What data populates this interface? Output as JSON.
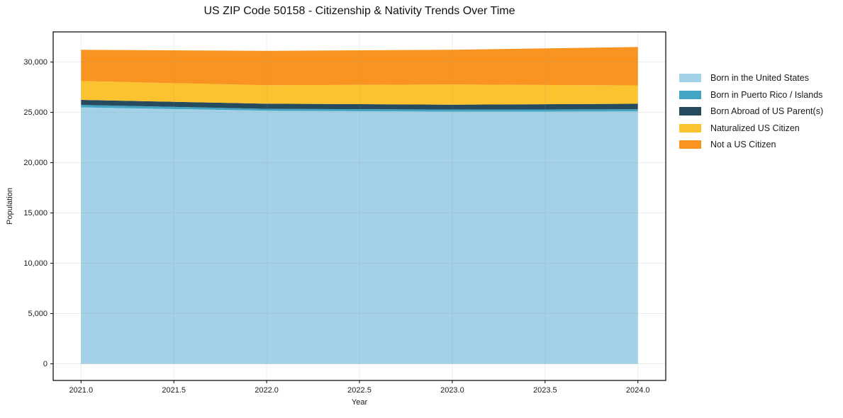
{
  "chart_data": {
    "type": "area",
    "stacked": true,
    "title": "US ZIP Code 50158 - Citizenship & Nativity Trends Over Time",
    "xlabel": "Year",
    "ylabel": "Population",
    "x": [
      2021,
      2022,
      2023,
      2024
    ],
    "series": [
      {
        "name": "Born in the United States",
        "color": "#a2d1e8",
        "values": [
          25500,
          25160,
          25070,
          25090
        ]
      },
      {
        "name": "Born in Puerto Rico / Islands",
        "color": "#41a5c3",
        "values": [
          240,
          190,
          210,
          210
        ]
      },
      {
        "name": "Born Abroad of US Parent(s)",
        "color": "#264a5e",
        "values": [
          500,
          510,
          490,
          560
        ]
      },
      {
        "name": "Naturalized US Citizen",
        "color": "#fcc330",
        "values": [
          1870,
          1840,
          2000,
          1820
        ]
      },
      {
        "name": "Not a US Citizen",
        "color": "#f8941f",
        "values": [
          3110,
          3410,
          3450,
          3820
        ]
      }
    ],
    "xlim": [
      2020.85,
      2024.15
    ],
    "ylim": [
      -1650,
      33000
    ],
    "xticks": [
      {
        "v": 2021.0,
        "label": "2021.0"
      },
      {
        "v": 2021.5,
        "label": "2021.5"
      },
      {
        "v": 2022.0,
        "label": "2022.0"
      },
      {
        "v": 2022.5,
        "label": "2022.5"
      },
      {
        "v": 2023.0,
        "label": "2023.0"
      },
      {
        "v": 2023.5,
        "label": "2023.5"
      },
      {
        "v": 2024.0,
        "label": "2024.0"
      }
    ],
    "yticks": [
      {
        "v": 0,
        "label": "0"
      },
      {
        "v": 5000,
        "label": "5,000"
      },
      {
        "v": 10000,
        "label": "10,000"
      },
      {
        "v": 15000,
        "label": "15,000"
      },
      {
        "v": 20000,
        "label": "20,000"
      },
      {
        "v": 25000,
        "label": "25,000"
      },
      {
        "v": 30000,
        "label": "30,000"
      }
    ],
    "grid": true,
    "legend_position": "right",
    "colors": {
      "background": "#ffffff",
      "plot_border": "#000000",
      "grid": "#9a9a9a",
      "tick": "#000000",
      "text": "#1a1a1a"
    }
  }
}
